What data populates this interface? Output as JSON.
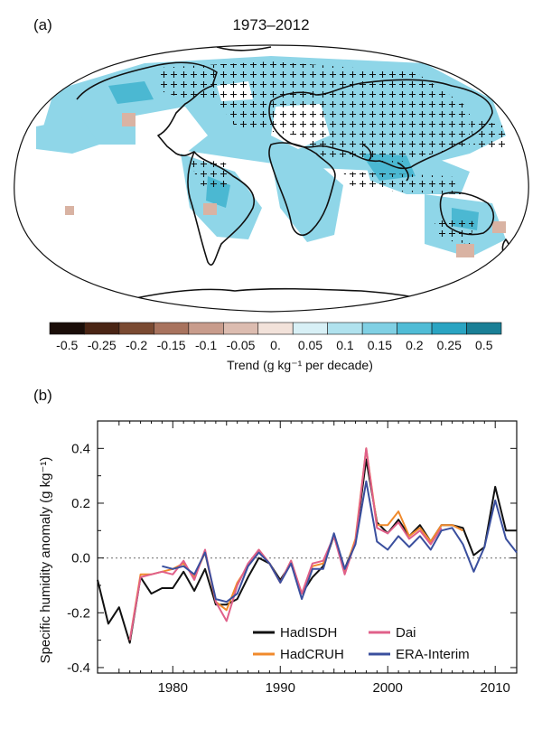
{
  "panel_a": {
    "label": "(a)",
    "title": "1973–2012",
    "map": {
      "content": "Global map of specific humidity trends with significance markers"
    },
    "colorbar": {
      "tick_labels": [
        "-0.5",
        "-0.25",
        "-0.2",
        "-0.15",
        "-0.1",
        "-0.05",
        "0.",
        "0.05",
        "0.1",
        "0.15",
        "0.2",
        "0.25",
        "0.5"
      ],
      "colors": [
        "#1a0d08",
        "#4a2515",
        "#7a4a32",
        "#a8735e",
        "#c89c8c",
        "#dcbcb0",
        "#f2e2da",
        "#d8f0f6",
        "#b0e2ee",
        "#80d0e4",
        "#50bcd6",
        "#2aa4c2",
        "#1a7f96"
      ],
      "label": "Trend (g kg⁻¹ per decade)"
    },
    "colors": {
      "land_outline": "#111111",
      "ocean": "#ffffff",
      "cell_fill": "#8fd6e8",
      "cell_fill_dark": "#4bb8d2",
      "cell_fill_brown": "#d9b3a3",
      "plus": "#111111"
    }
  },
  "panel_b": {
    "label": "(b)",
    "chart_data": {
      "type": "line",
      "title": "",
      "xlabel": "",
      "ylabel": "Specific humidity anomaly (g kg⁻¹)",
      "xlim": [
        1973,
        2012
      ],
      "ylim": [
        -0.42,
        0.5
      ],
      "xticks": [
        1980,
        1990,
        2000,
        2010
      ],
      "yticks": [
        -0.4,
        -0.2,
        0.0,
        0.2,
        0.4
      ],
      "xtick_labels": [
        "1980",
        "1990",
        "2000",
        "2010"
      ],
      "ytick_labels": [
        "-0.4",
        "-0.2",
        "0.0",
        "0.2",
        "0.4"
      ],
      "zero_line": "dotted",
      "legend_location": "bottom-right",
      "series": [
        {
          "name": "HadISDH",
          "color": "#111111",
          "x": [
            1973,
            1974,
            1975,
            1976,
            1977,
            1978,
            1979,
            1980,
            1981,
            1982,
            1983,
            1984,
            1985,
            1986,
            1987,
            1988,
            1989,
            1990,
            1991,
            1992,
            1993,
            1994,
            1995,
            1996,
            1997,
            1998,
            1999,
            2000,
            2001,
            2002,
            2003,
            2004,
            2005,
            2006,
            2007,
            2008,
            2009,
            2010,
            2011,
            2012
          ],
          "y": [
            -0.08,
            -0.24,
            -0.18,
            -0.31,
            -0.07,
            -0.13,
            -0.11,
            -0.11,
            -0.05,
            -0.12,
            -0.04,
            -0.17,
            -0.17,
            -0.15,
            -0.07,
            0.0,
            -0.02,
            -0.08,
            -0.02,
            -0.13,
            -0.07,
            -0.03,
            0.08,
            -0.04,
            0.06,
            0.36,
            0.13,
            0.09,
            0.14,
            0.08,
            0.12,
            0.06,
            0.12,
            0.12,
            0.11,
            0.01,
            0.04,
            0.26,
            0.1,
            0.1
          ]
        },
        {
          "name": "HadCRUH",
          "color": "#f08a2c",
          "x": [
            1976,
            1977,
            1978,
            1979,
            1980,
            1981,
            1982,
            1983,
            1984,
            1985,
            1986,
            1987,
            1988,
            1989,
            1990,
            1991,
            1992,
            1993,
            1994,
            1995,
            1996,
            1997,
            1998,
            1999,
            2000,
            2001,
            2002,
            2003,
            2004,
            2005,
            2006,
            2007
          ],
          "y": [
            -0.3,
            -0.06,
            -0.06,
            -0.05,
            -0.04,
            -0.02,
            -0.07,
            0.02,
            -0.16,
            -0.19,
            -0.09,
            -0.03,
            0.03,
            -0.02,
            -0.09,
            -0.01,
            -0.13,
            -0.03,
            -0.02,
            0.08,
            -0.05,
            0.07,
            0.4,
            0.12,
            0.12,
            0.17,
            0.08,
            0.11,
            0.06,
            0.12,
            0.12,
            0.1
          ]
        },
        {
          "name": "Dai",
          "color": "#e0608a",
          "x": [
            1976,
            1977,
            1978,
            1979,
            1980,
            1981,
            1982,
            1983,
            1984,
            1985,
            1986,
            1987,
            1988,
            1989,
            1990,
            1991,
            1992,
            1993,
            1994,
            1995,
            1996,
            1997,
            1998,
            1999,
            2000,
            2001,
            2002,
            2003,
            2004,
            2005
          ],
          "y": [
            -0.3,
            -0.07,
            -0.06,
            -0.05,
            -0.06,
            -0.01,
            -0.08,
            0.03,
            -0.16,
            -0.23,
            -0.1,
            -0.02,
            0.03,
            -0.02,
            -0.09,
            -0.01,
            -0.13,
            -0.02,
            -0.01,
            0.08,
            -0.06,
            0.06,
            0.4,
            0.11,
            0.09,
            0.13,
            0.07,
            0.1,
            0.05,
            0.11
          ]
        },
        {
          "name": "ERA-Interim",
          "color": "#3a4f9e",
          "x": [
            1979,
            1980,
            1981,
            1982,
            1983,
            1984,
            1985,
            1986,
            1987,
            1988,
            1989,
            1990,
            1991,
            1992,
            1993,
            1994,
            1995,
            1996,
            1997,
            1998,
            1999,
            2000,
            2001,
            2002,
            2003,
            2004,
            2005,
            2006,
            2007,
            2008,
            2009,
            2010,
            2011,
            2012
          ],
          "y": [
            -0.03,
            -0.04,
            -0.03,
            -0.06,
            0.02,
            -0.15,
            -0.16,
            -0.13,
            -0.03,
            0.02,
            -0.02,
            -0.09,
            -0.02,
            -0.15,
            -0.04,
            -0.04,
            0.09,
            -0.04,
            0.05,
            0.28,
            0.06,
            0.03,
            0.08,
            0.04,
            0.08,
            0.03,
            0.1,
            0.11,
            0.05,
            -0.05,
            0.04,
            0.21,
            0.07,
            0.02
          ]
        }
      ]
    }
  }
}
